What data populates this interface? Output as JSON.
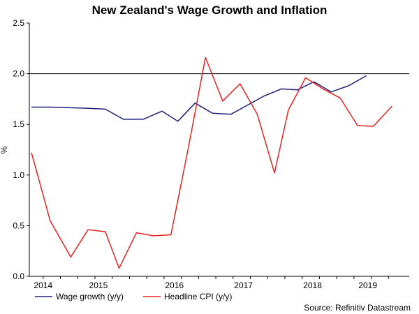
{
  "chart_data": {
    "type": "line",
    "title": "New Zealand's Wage Growth and Inflation",
    "ylabel": "%",
    "ylim": [
      0,
      2.5
    ],
    "yticks": [
      "0.0",
      "0.5",
      "1.0",
      "1.5",
      "2.0",
      "2.5"
    ],
    "ytick_values": [
      0,
      0.5,
      1.0,
      1.5,
      2.0,
      2.5
    ],
    "xlim": [
      2013.8,
      2019.3
    ],
    "xtick_labels": [
      "2014",
      "2015",
      "2016",
      "2017",
      "2018",
      "2019"
    ],
    "xtick_positions": [
      2014.0,
      2014.8,
      2015.9,
      2016.9,
      2017.9,
      2018.7
    ],
    "reference_line": 2.0,
    "grid": false,
    "legend_placement": "bottom-left",
    "source": "Source: Refinitiv Datastream",
    "series": [
      {
        "name": "Wage growth (y/y)",
        "color": "#1f1f7a",
        "x": [
          2013.83,
          2014.1,
          2014.6,
          2014.9,
          2015.16,
          2015.45,
          2015.72,
          2015.95,
          2016.2,
          2016.45,
          2016.72,
          2017.2,
          2017.45,
          2017.68,
          2017.92,
          2018.17,
          2018.42,
          2018.68
        ],
        "values": [
          1.67,
          1.67,
          1.66,
          1.65,
          1.55,
          1.55,
          1.63,
          1.53,
          1.71,
          1.61,
          1.6,
          1.78,
          1.85,
          1.84,
          1.92,
          1.82,
          1.88,
          1.98
        ]
      },
      {
        "name": "Headline CPI (y/y)",
        "color": "#e8201f",
        "x": [
          2013.83,
          2013.9,
          2014.1,
          2014.4,
          2014.65,
          2014.9,
          2015.1,
          2015.35,
          2015.6,
          2015.85,
          2016.1,
          2016.35,
          2016.6,
          2016.85,
          2017.1,
          2017.35,
          2017.55,
          2017.8,
          2018.05,
          2018.3,
          2018.55,
          2018.78,
          2019.05
        ],
        "values": [
          1.22,
          1.05,
          0.55,
          0.19,
          0.46,
          0.44,
          0.08,
          0.43,
          0.4,
          0.41,
          1.26,
          2.16,
          1.73,
          1.9,
          1.6,
          1.02,
          1.64,
          1.96,
          1.85,
          1.76,
          1.49,
          1.48,
          1.68
        ]
      }
    ]
  }
}
